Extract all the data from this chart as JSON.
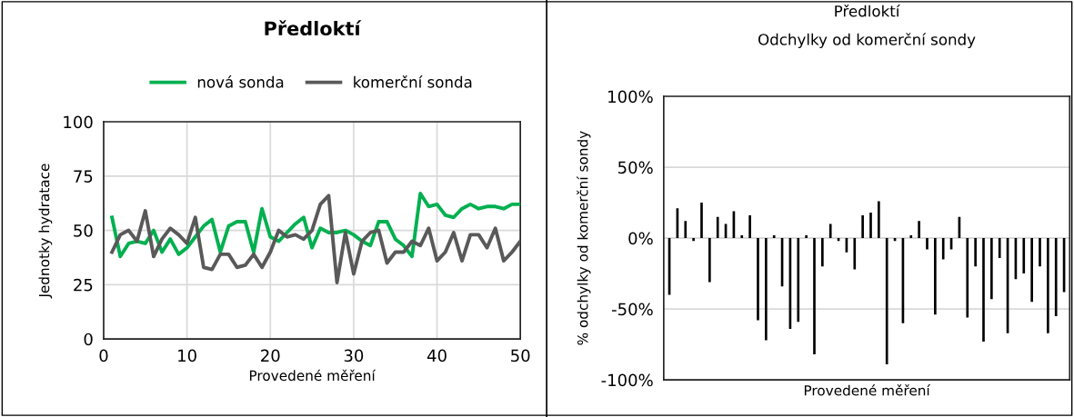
{
  "chart_data": [
    {
      "type": "line",
      "title": "Předloktí",
      "xlabel": "Provedené měření",
      "ylabel": "Jednotky hydratace",
      "x": [
        1,
        2,
        3,
        4,
        5,
        6,
        7,
        8,
        9,
        10,
        11,
        12,
        13,
        14,
        15,
        16,
        17,
        18,
        19,
        20,
        21,
        22,
        23,
        24,
        25,
        26,
        27,
        28,
        29,
        30,
        31,
        32,
        33,
        34,
        35,
        36,
        37,
        38,
        39,
        40,
        41,
        42,
        43,
        44,
        45,
        46,
        47,
        48,
        49,
        50
      ],
      "series": [
        {
          "name": "nová sonda",
          "color": "#00b050",
          "values": [
            56,
            38,
            44,
            45,
            44,
            50,
            40,
            46,
            39,
            42,
            47,
            52,
            55,
            40,
            52,
            54,
            54,
            40,
            60,
            47,
            45,
            49,
            53,
            56,
            42,
            51,
            49,
            49,
            50,
            48,
            45,
            43,
            54,
            54,
            46,
            43,
            38,
            67,
            61,
            62,
            57,
            56,
            60,
            62,
            60,
            61,
            61,
            60,
            62,
            62
          ]
        },
        {
          "name": "komerční sonda",
          "color": "#595959",
          "values": [
            40,
            48,
            50,
            45,
            59,
            38,
            46,
            51,
            48,
            44,
            56,
            33,
            32,
            39,
            39,
            33,
            34,
            39,
            33,
            40,
            50,
            47,
            48,
            46,
            50,
            62,
            66,
            26,
            49,
            30,
            45,
            49,
            50,
            35,
            40,
            40,
            45,
            43,
            51,
            36,
            40,
            49,
            36,
            48,
            48,
            42,
            51,
            36,
            40,
            45
          ]
        }
      ],
      "xlim": [
        0,
        50
      ],
      "xticks": [
        0,
        10,
        20,
        30,
        40,
        50
      ],
      "ylim": [
        0,
        100
      ],
      "yticks": [
        0,
        25,
        50,
        75,
        100
      ],
      "grid": true,
      "legend": "top",
      "marker": "none",
      "line_style": "solid"
    },
    {
      "type": "bar",
      "title": "Předloktí",
      "subtitle": "Odchylky od komerční sondy",
      "xlabel": "Provedené měření",
      "ylabel": "% odchylky od komerční sondy",
      "categories": [
        null,
        null,
        null,
        null,
        null,
        null,
        null,
        null,
        null,
        null,
        null,
        null,
        null,
        null,
        null,
        null,
        null,
        null,
        null,
        null,
        null,
        null,
        null,
        null,
        null,
        null,
        null,
        null,
        null,
        null,
        null,
        null,
        null,
        null,
        null,
        null,
        null,
        null,
        null,
        null,
        null,
        null,
        null,
        null,
        null,
        null,
        null,
        null,
        null,
        null
      ],
      "series": [
        {
          "color": "#000000",
          "values": [
            -40,
            21,
            12,
            -2,
            25,
            -31,
            15,
            10,
            19,
            2,
            16,
            -58,
            -72,
            2,
            -34,
            -64,
            -59,
            2,
            -82,
            -20,
            10,
            -2,
            -10,
            -22,
            16,
            18,
            26,
            -89,
            -2,
            -60,
            2,
            12,
            -8,
            -54,
            -15,
            -8,
            15,
            -56,
            -20,
            -73,
            -43,
            -14,
            -67,
            -29,
            -25,
            -45,
            -20,
            -67,
            -55,
            -38
          ]
        }
      ],
      "ylim": [
        -100,
        100
      ],
      "yticks": [
        {
          "value": -100,
          "label": "-100%"
        },
        {
          "value": -50,
          "label": "-50%"
        },
        {
          "value": 0,
          "label": "0%"
        },
        {
          "value": 50,
          "label": "50%"
        },
        {
          "value": 100,
          "label": "100%"
        }
      ],
      "grid": "y",
      "legend": false
    }
  ]
}
